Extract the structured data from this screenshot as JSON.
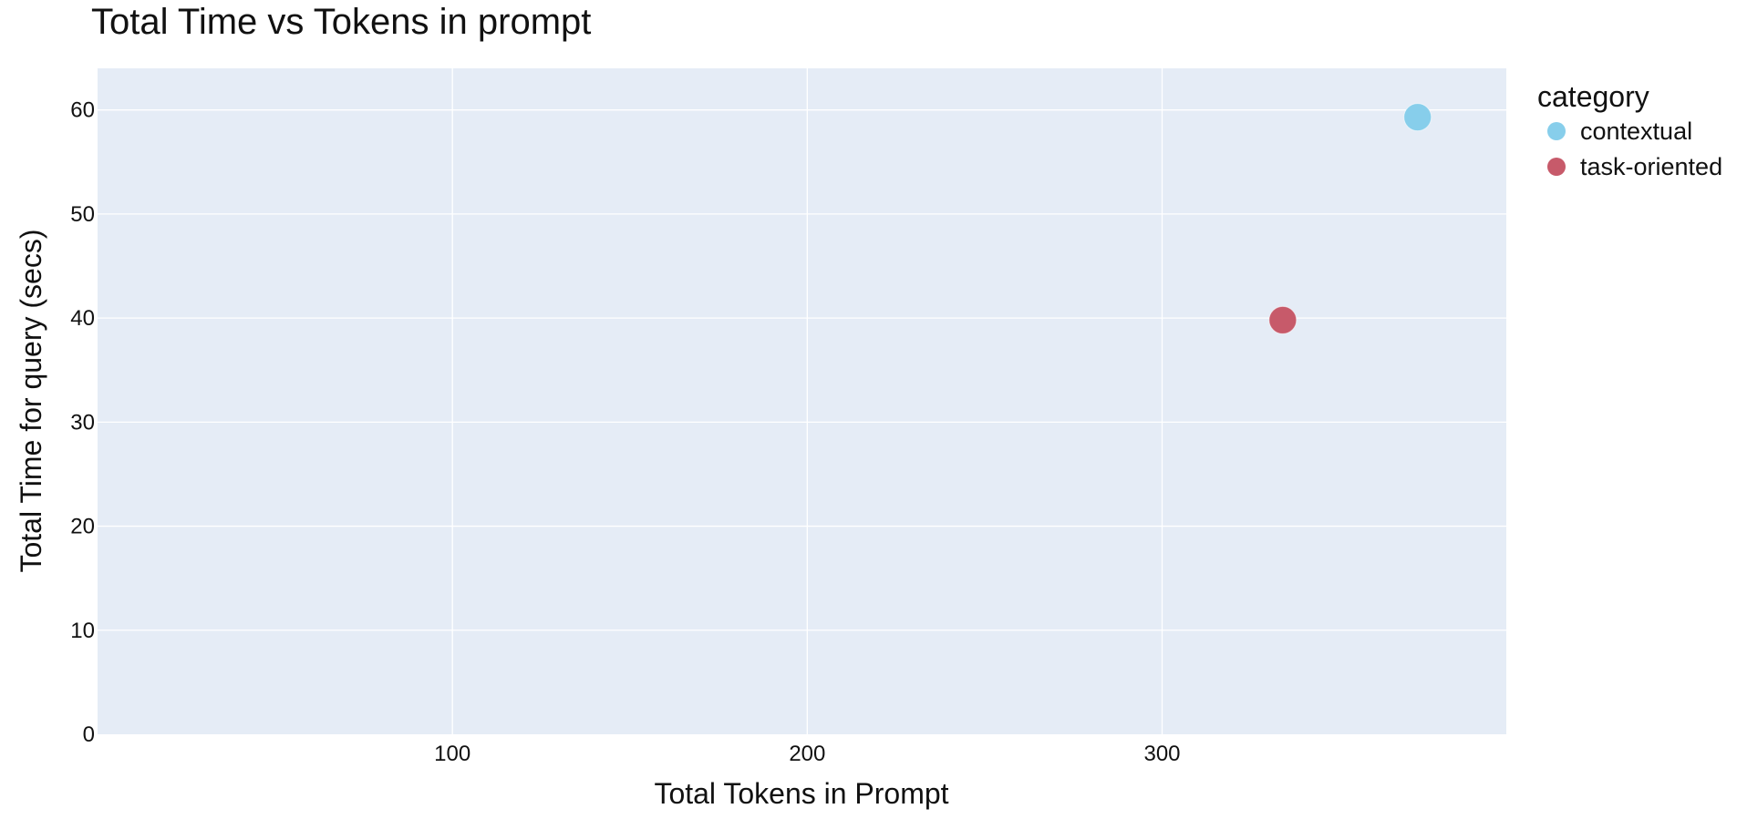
{
  "chart_data": {
    "type": "scatter",
    "title": "Total Time vs Tokens in prompt",
    "xlabel": "Total Tokens in Prompt",
    "ylabel": "Total Time for query (secs)",
    "xlim": [
      0,
      397
    ],
    "ylim": [
      0,
      64
    ],
    "x_ticks": [
      100,
      200,
      300
    ],
    "y_ticks": [
      0,
      10,
      20,
      30,
      40,
      50,
      60
    ],
    "grid": true,
    "plot_background": "#e5ecf6",
    "legend": {
      "title": "category",
      "placement": "right"
    },
    "series": [
      {
        "name": "contextual",
        "color": "#87ceeb",
        "points": [
          {
            "x": 372,
            "y": 59.3
          }
        ]
      },
      {
        "name": "task-oriented",
        "color": "#c75a6a",
        "points": [
          {
            "x": 334,
            "y": 39.8
          }
        ]
      }
    ]
  }
}
